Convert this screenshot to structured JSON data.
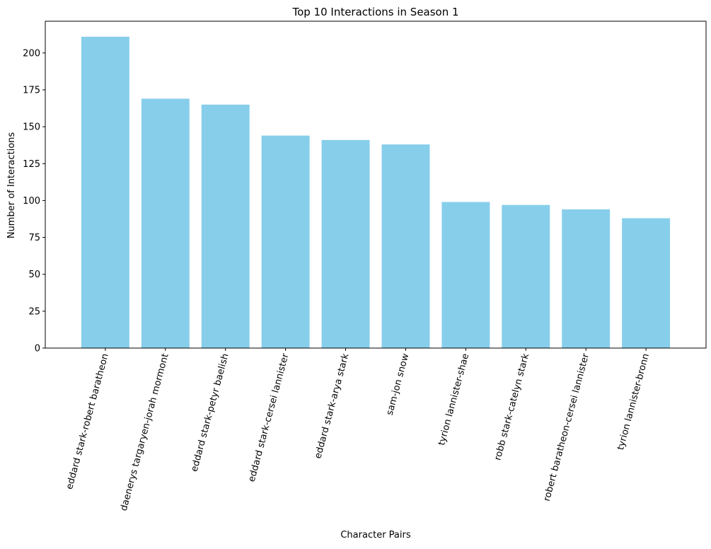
{
  "chart_data": {
    "type": "bar",
    "title": "Top 10 Interactions in Season 1",
    "xlabel": "Character Pairs",
    "ylabel": "Number of Interactions",
    "categories": [
      "eddard stark-robert baratheon",
      "daenerys targaryen-jorah mormont",
      "eddard stark-petyr baelish",
      "eddard stark-cersei lannister",
      "eddard stark-arya stark",
      "sam-jon snow",
      "tyrion lannister-shae",
      "robb stark-catelyn stark",
      "robert baratheon-cersei lannister",
      "tyrion lannister-bronn"
    ],
    "values": [
      211,
      169,
      165,
      144,
      141,
      138,
      99,
      97,
      94,
      88
    ],
    "ylim": [
      0,
      221.5
    ],
    "yticks": [
      0,
      25,
      50,
      75,
      100,
      125,
      150,
      175,
      200
    ],
    "bar_color": "#87ceeb",
    "grid": false,
    "legend": "none"
  }
}
